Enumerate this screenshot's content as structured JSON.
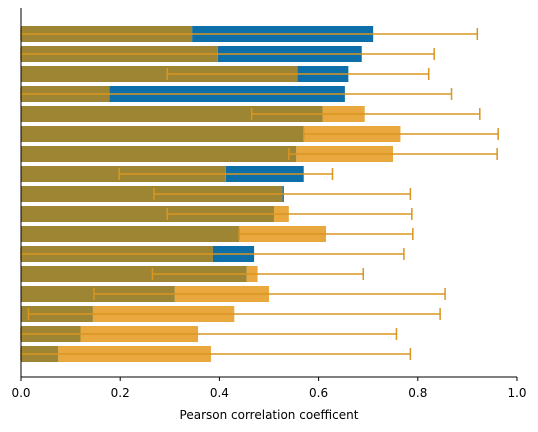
{
  "chart_data": {
    "type": "bar",
    "orientation": "horizontal",
    "xlabel": "Pearson correlation coefficent",
    "ylabel": "",
    "xlim": [
      0,
      1.0
    ],
    "x_ticks": [
      0.0,
      0.2,
      0.4,
      0.6,
      0.8,
      1.0
    ],
    "x_tick_labels": [
      "0.0",
      "0.2",
      "0.4",
      "0.6",
      "0.8",
      "1.0"
    ],
    "grid": false,
    "legend": "none",
    "colors": {
      "series_a": "#0d6ea8",
      "series_b": "#e8a83e",
      "overlap": "#9e8533",
      "error_bar": "#d99520"
    },
    "rows": [
      {
        "a": 0.71,
        "b": 0.345,
        "err_center": 0.345,
        "err_low": 0.0,
        "err_high": 0.92
      },
      {
        "a": 0.687,
        "b": 0.397,
        "err_center": 0.397,
        "err_low": 0.0,
        "err_high": 0.833
      },
      {
        "a": 0.66,
        "b": 0.557,
        "err_center": 0.557,
        "err_low": 0.295,
        "err_high": 0.822
      },
      {
        "a": 0.653,
        "b": 0.178,
        "err_center": 0.178,
        "err_low": 0.0,
        "err_high": 0.868
      },
      {
        "a": 0.608,
        "b": 0.693,
        "err_center": 0.693,
        "err_low": 0.465,
        "err_high": 0.925
      },
      {
        "a": 0.57,
        "b": 0.765,
        "err_center": 0.765,
        "err_low": 0.57,
        "err_high": 0.962
      },
      {
        "a": 0.555,
        "b": 0.75,
        "err_center": 0.75,
        "err_low": 0.54,
        "err_high": 0.96
      },
      {
        "a": 0.57,
        "b": 0.413,
        "err_center": 0.413,
        "err_low": 0.198,
        "err_high": 0.628
      },
      {
        "a": 0.53,
        "b": 0.527,
        "err_center": 0.527,
        "err_low": 0.268,
        "err_high": 0.785
      },
      {
        "a": 0.51,
        "b": 0.54,
        "err_center": 0.54,
        "err_low": 0.295,
        "err_high": 0.788
      },
      {
        "a": 0.44,
        "b": 0.615,
        "err_center": 0.615,
        "err_low": 0.44,
        "err_high": 0.79
      },
      {
        "a": 0.47,
        "b": 0.387,
        "err_center": 0.387,
        "err_low": 0.0,
        "err_high": 0.772
      },
      {
        "a": 0.455,
        "b": 0.477,
        "err_center": 0.477,
        "err_low": 0.265,
        "err_high": 0.69
      },
      {
        "a": 0.31,
        "b": 0.5,
        "err_center": 0.5,
        "err_low": 0.147,
        "err_high": 0.855
      },
      {
        "a": 0.145,
        "b": 0.43,
        "err_center": 0.43,
        "err_low": 0.015,
        "err_high": 0.845
      },
      {
        "a": 0.12,
        "b": 0.357,
        "err_center": 0.357,
        "err_low": 0.0,
        "err_high": 0.757
      },
      {
        "a": 0.075,
        "b": 0.383,
        "err_center": 0.383,
        "err_low": 0.0,
        "err_high": 0.785
      }
    ]
  }
}
